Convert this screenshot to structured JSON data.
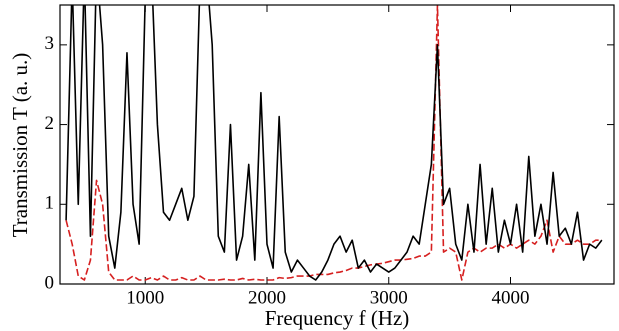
{
  "chart_data": {
    "type": "line",
    "x_label": "Frequency f (Hz)",
    "y_label": "Transmission T (a. u.)",
    "xlim": [
      300,
      4850
    ],
    "ylim": [
      0,
      3.5
    ],
    "xticks": [
      1000,
      2000,
      3000,
      4000
    ],
    "yticks": [
      0,
      1,
      2,
      3
    ],
    "x": [
      350,
      400,
      450,
      500,
      550,
      600,
      650,
      700,
      750,
      800,
      850,
      900,
      950,
      1000,
      1050,
      1100,
      1150,
      1200,
      1250,
      1300,
      1350,
      1400,
      1450,
      1500,
      1550,
      1600,
      1650,
      1700,
      1750,
      1800,
      1850,
      1900,
      1950,
      2000,
      2050,
      2100,
      2150,
      2200,
      2250,
      2300,
      2350,
      2400,
      2450,
      2500,
      2550,
      2600,
      2650,
      2700,
      2750,
      2800,
      2850,
      2900,
      2950,
      3000,
      3050,
      3100,
      3150,
      3200,
      3250,
      3300,
      3350,
      3400,
      3450,
      3500,
      3550,
      3600,
      3650,
      3700,
      3750,
      3800,
      3850,
      3900,
      3950,
      4000,
      4050,
      4100,
      4150,
      4200,
      4250,
      4300,
      4350,
      4400,
      4450,
      4500,
      4550,
      4600,
      4650,
      4700,
      4750
    ],
    "series": [
      {
        "color": "#000000",
        "dash": "none",
        "values": [
          0.8,
          3.8,
          1.0,
          3.9,
          0.6,
          4.0,
          3.0,
          0.6,
          0.2,
          0.9,
          2.9,
          1.0,
          0.5,
          3.6,
          4.0,
          2.0,
          0.9,
          0.8,
          1.0,
          1.2,
          0.8,
          1.1,
          3.8,
          4.0,
          3.0,
          0.6,
          0.4,
          2.0,
          0.3,
          0.6,
          1.5,
          0.3,
          2.4,
          0.5,
          0.2,
          2.1,
          0.4,
          0.15,
          0.3,
          0.2,
          0.1,
          0.05,
          0.15,
          0.3,
          0.5,
          0.6,
          0.4,
          0.55,
          0.2,
          0.3,
          0.15,
          0.25,
          0.2,
          0.15,
          0.2,
          0.3,
          0.4,
          0.6,
          0.5,
          1.0,
          1.5,
          3.0,
          1.0,
          1.2,
          0.5,
          0.3,
          1.0,
          0.4,
          1.5,
          0.5,
          1.2,
          0.4,
          0.8,
          0.5,
          1.0,
          0.4,
          1.6,
          0.6,
          1.0,
          0.5,
          1.4,
          0.6,
          0.7,
          0.5,
          0.9,
          0.3,
          0.5,
          0.45,
          0.55
        ]
      },
      {
        "color": "#d62020",
        "dash": "7 3",
        "values": [
          0.8,
          0.5,
          0.1,
          0.05,
          0.3,
          1.3,
          1.0,
          0.15,
          0.05,
          0.05,
          0.05,
          0.1,
          0.05,
          0.05,
          0.08,
          0.05,
          0.1,
          0.05,
          0.05,
          0.08,
          0.05,
          0.05,
          0.1,
          0.05,
          0.05,
          0.05,
          0.06,
          0.05,
          0.05,
          0.07,
          0.05,
          0.06,
          0.05,
          0.05,
          0.05,
          0.08,
          0.07,
          0.08,
          0.1,
          0.1,
          0.1,
          0.12,
          0.12,
          0.12,
          0.14,
          0.15,
          0.17,
          0.2,
          0.2,
          0.22,
          0.24,
          0.25,
          0.26,
          0.28,
          0.3,
          0.3,
          0.31,
          0.32,
          0.35,
          0.35,
          0.4,
          3.5,
          0.4,
          0.45,
          0.4,
          0.05,
          0.4,
          0.45,
          0.4,
          0.45,
          0.45,
          0.5,
          0.45,
          0.5,
          0.45,
          0.5,
          0.55,
          0.5,
          0.6,
          0.8,
          0.4,
          0.6,
          0.5,
          0.5,
          0.55,
          0.5,
          0.5,
          0.55,
          0.55
        ]
      }
    ]
  }
}
